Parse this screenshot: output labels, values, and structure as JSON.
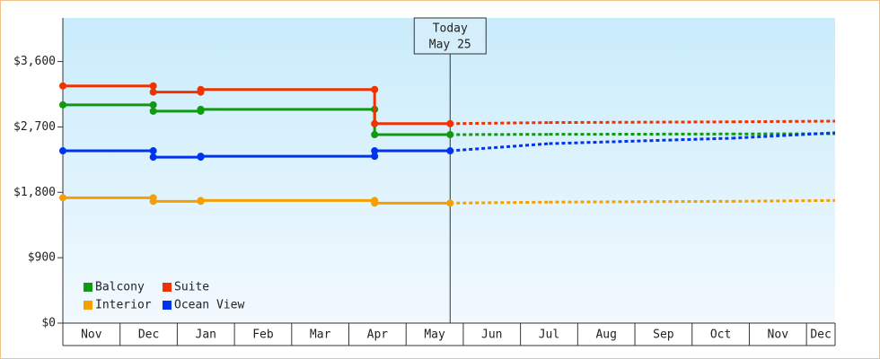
{
  "chart_data": {
    "type": "line",
    "categories": [
      "Nov",
      "Dec",
      "Jan",
      "Feb",
      "Mar",
      "Apr",
      "May",
      "Jun",
      "Jul",
      "Aug",
      "Sep",
      "Oct",
      "Nov",
      "Dec"
    ],
    "xlim": [
      0,
      13.5
    ],
    "ylim": [
      0,
      4200
    ],
    "yticks": [
      {
        "value": 0,
        "label": "$0"
      },
      {
        "value": 900,
        "label": "$900"
      },
      {
        "value": 1800,
        "label": "$1,800"
      },
      {
        "value": 2700,
        "label": "$2,700"
      },
      {
        "value": 3600,
        "label": "$3,600"
      }
    ],
    "today": {
      "x": 6.77,
      "label": "Today",
      "date": "May 25"
    },
    "series": [
      {
        "name": "Balcony",
        "color": "#119911",
        "x": [
          0,
          1.58,
          1.58,
          2.41,
          2.41,
          5.45,
          5.45,
          6.77,
          8.5,
          11.7,
          13.5
        ],
        "values": [
          3004,
          3004,
          2917,
          2917,
          2942,
          2942,
          2594,
          2594,
          2598,
          2603,
          2607
        ]
      },
      {
        "name": "Suite",
        "color": "#ee3300",
        "x": [
          0,
          1.58,
          1.58,
          2.41,
          2.41,
          5.45,
          5.45,
          6.77,
          8.5,
          11.7,
          13.5
        ],
        "values": [
          3265,
          3265,
          3180,
          3180,
          3215,
          3215,
          2745,
          2745,
          2760,
          2770,
          2780
        ]
      },
      {
        "name": "Interior",
        "color": "#f5a000",
        "x": [
          0,
          1.58,
          1.58,
          2.41,
          2.41,
          5.45,
          5.45,
          6.77,
          8.5,
          11.7,
          13.5
        ],
        "values": [
          1725,
          1725,
          1676,
          1676,
          1688,
          1688,
          1651,
          1651,
          1665,
          1676,
          1688
        ]
      },
      {
        "name": "Ocean View",
        "color": "#0033ee",
        "x": [
          0,
          1.58,
          1.58,
          2.41,
          2.41,
          5.45,
          5.45,
          6.77,
          8.5,
          11.7,
          13.5
        ],
        "values": [
          2371,
          2371,
          2284,
          2284,
          2296,
          2296,
          2371,
          2371,
          2470,
          2545,
          2619
        ]
      }
    ]
  }
}
